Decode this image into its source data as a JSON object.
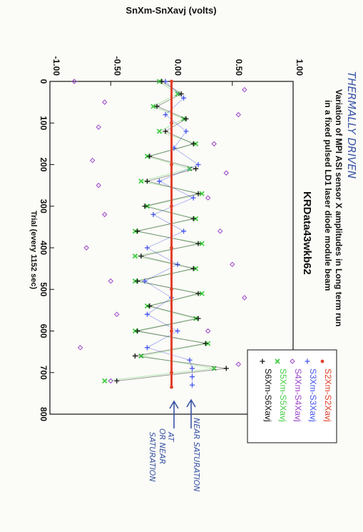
{
  "chart_data": {
    "type": "scatter",
    "title": "Variation of MPI ASI sensor X amplitudes in Long term run",
    "subtitle": "in a fixed pulsed LD1 laser diode module beam",
    "run_label": "KRData43wkb62",
    "xlabel": "Trial (every 1152 sec)",
    "ylabel": "SnXm-SnXavj (volts)",
    "xlim": [
      0,
      800
    ],
    "ylim": [
      -1.0,
      1.0
    ],
    "x_ticks": [
      "0",
      "100",
      "200",
      "300",
      "400",
      "500",
      "600",
      "700",
      "800"
    ],
    "y_ticks": [
      "-1.00",
      "-0.50",
      "0.00",
      "0.50",
      "1.00"
    ],
    "orientation": "rotated-90-clockwise",
    "legend_position": "right",
    "series": [
      {
        "name": "S2Xm-S2Xavj",
        "color": "#e0402a",
        "marker": "dot",
        "x": [
          0,
          100,
          200,
          300,
          400,
          500,
          600,
          700,
          735
        ],
        "y": [
          0.0,
          0.0,
          0.0,
          0.0,
          0.0,
          0.0,
          0.0,
          0.0,
          0.0
        ]
      },
      {
        "name": "S3Xm-S3Xavj",
        "color": "#4455ee",
        "marker": "plus",
        "x": [
          0,
          40,
          80,
          120,
          160,
          200,
          240,
          280,
          320,
          360,
          400,
          440,
          480,
          520,
          560,
          600,
          640,
          670,
          690,
          710,
          730
        ],
        "y": [
          -0.05,
          0.1,
          -0.05,
          0.12,
          0.02,
          0.22,
          -0.1,
          0.18,
          -0.15,
          0.1,
          -0.2,
          0.05,
          -0.22,
          0.0,
          -0.2,
          0.05,
          -0.2,
          0.15,
          0.17,
          0.17,
          0.17
        ]
      },
      {
        "name": "S4Xm-S4Xavj",
        "color": "#9b45c9",
        "marker": "diamond",
        "x": [
          0,
          20,
          50,
          80,
          110,
          150,
          190,
          220,
          250,
          280,
          320,
          360,
          400,
          440,
          480,
          520,
          560,
          600,
          640,
          680,
          720
        ],
        "y": [
          -0.8,
          0.6,
          -0.55,
          0.55,
          -0.6,
          0.35,
          -0.65,
          0.45,
          -0.6,
          0.3,
          -0.55,
          0.4,
          -0.7,
          0.5,
          -0.5,
          0.6,
          -0.45,
          0.3,
          -0.75,
          0.55,
          -0.5
        ]
      },
      {
        "name": "S5Xm-S5Xavj",
        "color": "#44cc44",
        "marker": "x",
        "x": [
          0,
          30,
          60,
          90,
          120,
          150,
          180,
          210,
          240,
          270,
          300,
          330,
          360,
          390,
          420,
          450,
          480,
          510,
          540,
          570,
          600,
          630,
          660,
          690,
          720
        ],
        "y": [
          -0.1,
          0.05,
          -0.15,
          0.1,
          -0.1,
          0.2,
          -0.2,
          0.15,
          -0.25,
          0.25,
          -0.2,
          0.2,
          -0.3,
          0.25,
          -0.3,
          0.2,
          -0.3,
          0.25,
          -0.2,
          0.2,
          -0.3,
          0.3,
          -0.25,
          0.35,
          -0.55
        ]
      },
      {
        "name": "S6Xm-S6Xavj",
        "color": "#111111",
        "marker": "plus",
        "x": [
          0,
          30,
          60,
          90,
          120,
          150,
          180,
          210,
          240,
          270,
          300,
          330,
          360,
          390,
          420,
          450,
          480,
          510,
          540,
          570,
          600,
          630,
          660,
          690,
          720
        ],
        "y": [
          -0.08,
          0.08,
          -0.12,
          0.12,
          -0.05,
          0.18,
          -0.18,
          0.2,
          -0.2,
          0.22,
          -0.22,
          0.18,
          -0.28,
          0.22,
          -0.25,
          0.18,
          -0.28,
          0.22,
          -0.18,
          0.22,
          -0.28,
          0.28,
          -0.3,
          0.45,
          -0.45
        ]
      }
    ]
  },
  "annotations": {
    "top": "THERMALLY DRIVEN",
    "near_sat": "NEAR SATURATION",
    "at_sat_line1": "AT",
    "at_sat_line2": "OR NEAR",
    "at_sat_line3": "SATURATION"
  },
  "colors": {
    "annotation_ink": "#3a55a6",
    "red_line": "#d93a1e"
  }
}
